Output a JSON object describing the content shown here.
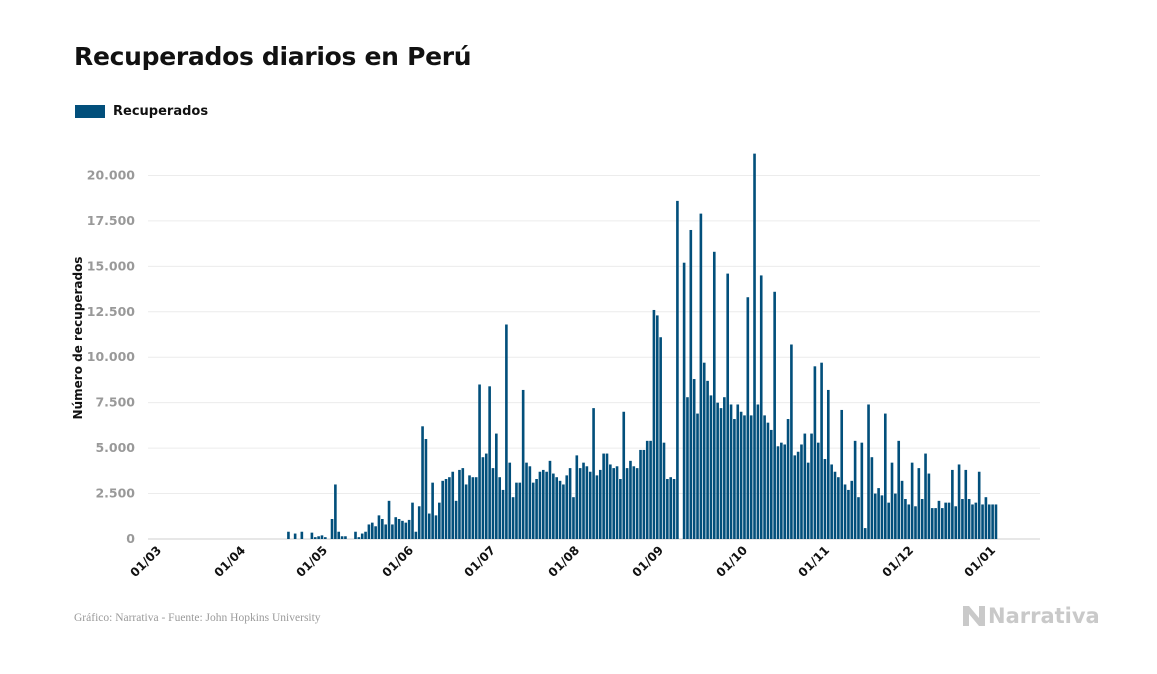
{
  "title": "Recuperados diarios en Perú",
  "legend_label": "Recuperados",
  "footer": "Gráfico: Narrativa - Fuente: John Hopkins University",
  "logo_text": "Narrativa",
  "chart_data": {
    "type": "bar",
    "ylabel": "Número de recuperados",
    "ylim": [
      0,
      22500
    ],
    "yticks": [
      0,
      2500,
      5000,
      7500,
      10000,
      12500,
      15000,
      17500,
      20000
    ],
    "ytick_labels": [
      "0",
      "2.500",
      "5.000",
      "7.500",
      "10.000",
      "12.500",
      "15.000",
      "17.500",
      "20.000"
    ],
    "xtick_labels": [
      "01/03",
      "01/04",
      "01/05",
      "01/06",
      "01/07",
      "01/08",
      "01/09",
      "01/10",
      "01/11",
      "01/12",
      "01/01"
    ],
    "grid": true,
    "legend_position": "top-left",
    "color": "#024f7b",
    "series": [
      {
        "name": "Recuperados",
        "values": [
          0,
          0,
          0,
          0,
          0,
          0,
          0,
          0,
          0,
          0,
          0,
          0,
          0,
          0,
          0,
          0,
          0,
          0,
          0,
          0,
          0,
          0,
          0,
          0,
          0,
          0,
          0,
          0,
          0,
          0,
          0,
          0,
          0,
          0,
          0,
          0,
          0,
          0,
          0,
          0,
          400,
          0,
          300,
          0,
          400,
          0,
          0,
          350,
          100,
          150,
          200,
          100,
          0,
          1100,
          3000,
          400,
          150,
          150,
          0,
          0,
          400,
          100,
          300,
          400,
          800,
          900,
          700,
          1300,
          1100,
          800,
          2100,
          800,
          1200,
          1100,
          1000,
          900,
          1050,
          2000,
          400,
          1800,
          6200,
          5500,
          1400,
          3100,
          1300,
          2000,
          3200,
          3300,
          3400,
          3700,
          2100,
          3800,
          3900,
          3000,
          3500,
          3400,
          3400,
          8500,
          4500,
          4700,
          8400,
          3900,
          5800,
          3400,
          2700,
          11800,
          4200,
          2300,
          3100,
          3100,
          8200,
          4200,
          4000,
          3100,
          3300,
          3700,
          3800,
          3700,
          4300,
          3600,
          3400,
          3200,
          3000,
          3500,
          3900,
          2300,
          4600,
          3900,
          4200,
          4000,
          3700,
          7200,
          3500,
          3800,
          4700,
          4700,
          4100,
          3900,
          4000,
          3300,
          7000,
          3900,
          4300,
          4000,
          3900,
          4900,
          4900,
          5400,
          5400,
          12600,
          12300,
          11100,
          5300,
          3300,
          3400,
          3300,
          18600,
          0,
          15200,
          7800,
          17000,
          8800,
          6900,
          17900,
          9700,
          8700,
          7900,
          15800,
          7500,
          7200,
          7800,
          14600,
          7400,
          6600,
          7400,
          7000,
          6800,
          13300,
          6800,
          21200,
          7400,
          14500,
          6800,
          6400,
          6000,
          13600,
          5100,
          5300,
          5200,
          6600,
          10700,
          4600,
          4800,
          5200,
          5800,
          4200,
          5800,
          9500,
          5300,
          9700,
          4400,
          8200,
          4100,
          3700,
          3400,
          7100,
          3000,
          2700,
          3200,
          5400,
          2300,
          5300,
          600,
          7400,
          4500,
          2500,
          2800,
          2400,
          6900,
          2000,
          4200,
          2500,
          5400,
          3200,
          2200,
          1900,
          4200,
          1800,
          3900,
          2200,
          4700,
          3600,
          1700,
          1700,
          2100,
          1700,
          2000,
          2000,
          3800,
          1800,
          4100,
          2200,
          3800,
          2200,
          1900,
          2000,
          3700,
          1900,
          2300,
          1900,
          1900,
          1900
        ]
      }
    ]
  }
}
